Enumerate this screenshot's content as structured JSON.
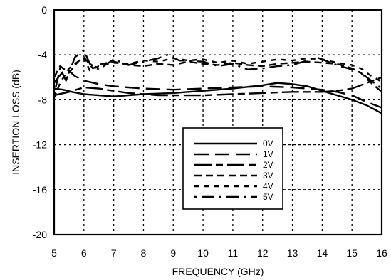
{
  "chart_data": {
    "type": "line",
    "title": "",
    "xlabel": "FREQUENCY (GHz)",
    "ylabel": "INSERTION LOSS (dB)",
    "xlim": [
      5,
      16
    ],
    "ylim": [
      -20,
      0
    ],
    "xticks": [
      "5",
      "6",
      "7",
      "8",
      "9",
      "10",
      "11",
      "12",
      "13",
      "14",
      "15",
      "16"
    ],
    "yticks": [
      "0",
      "-4",
      "-8",
      "-12",
      "-16",
      "-20"
    ],
    "grid": true,
    "legend_position": "lower-center",
    "series": [
      {
        "name": "0V",
        "dash": "solid",
        "x": [
          5,
          5.3,
          5.6,
          6,
          6.5,
          7,
          7.5,
          8,
          9,
          10,
          11,
          12,
          12.5,
          13,
          13.5,
          14,
          14.5,
          15,
          15.5,
          16
        ],
        "y": [
          -7.0,
          -7.1,
          -7.3,
          -7.5,
          -7.6,
          -7.7,
          -7.6,
          -7.5,
          -7.4,
          -7.2,
          -7.0,
          -6.7,
          -6.5,
          -6.6,
          -6.8,
          -7.2,
          -7.6,
          -8.0,
          -8.5,
          -9.2
        ]
      },
      {
        "name": "1V",
        "dash": "long-dash",
        "x": [
          5,
          5.2,
          5.4,
          5.7,
          6,
          6.5,
          7,
          7.5,
          8,
          9,
          10,
          11,
          12,
          13,
          14,
          14.5,
          15,
          15.5,
          16
        ],
        "y": [
          -6.5,
          -5.8,
          -5.2,
          -5.9,
          -6.3,
          -6.6,
          -6.8,
          -6.9,
          -7.0,
          -7.1,
          -7.0,
          -6.9,
          -6.8,
          -6.9,
          -7.1,
          -7.3,
          -7.6,
          -8.2,
          -8.7
        ]
      },
      {
        "name": "2V",
        "dash": "long-short",
        "x": [
          5,
          5.5,
          6,
          6.5,
          7,
          7.5,
          8,
          8.5,
          9,
          10,
          11,
          12,
          13,
          14,
          14.5,
          15,
          15.5,
          16
        ],
        "y": [
          -7.6,
          -7.3,
          -6.9,
          -7.0,
          -7.2,
          -7.4,
          -7.5,
          -7.6,
          -7.6,
          -7.6,
          -7.5,
          -7.4,
          -7.3,
          -7.3,
          -7.2,
          -7.0,
          -6.5,
          -6.0
        ]
      },
      {
        "name": "3V",
        "dash": "medium-dash",
        "x": [
          5,
          5.2,
          5.5,
          5.8,
          6,
          6.3,
          6.6,
          7,
          7.5,
          8,
          8.5,
          9,
          9.5,
          10,
          10.5,
          11,
          11.5,
          12,
          12.5,
          13,
          13.5,
          14,
          14.5,
          15,
          15.3,
          15.6,
          16
        ],
        "y": [
          -6.0,
          -5.0,
          -5.6,
          -4.6,
          -4.2,
          -5.2,
          -4.8,
          -4.6,
          -4.9,
          -5.0,
          -4.8,
          -4.9,
          -4.6,
          -4.8,
          -4.9,
          -4.7,
          -4.9,
          -5.0,
          -4.8,
          -4.7,
          -4.6,
          -4.7,
          -4.8,
          -5.2,
          -5.6,
          -6.4,
          -7.3
        ]
      },
      {
        "name": "4V",
        "dash": "dotted-dash",
        "x": [
          5,
          5.2,
          5.5,
          5.8,
          6,
          6.2,
          6.5,
          7,
          7.5,
          8,
          8.5,
          9,
          9.5,
          10,
          10.5,
          11,
          11.5,
          12,
          12.5,
          13,
          13.5,
          14,
          14.5,
          15,
          15.3,
          15.6,
          16
        ],
        "y": [
          -7.8,
          -6.5,
          -5.2,
          -4.6,
          -4.3,
          -5.4,
          -5.0,
          -4.7,
          -4.8,
          -4.5,
          -4.6,
          -4.3,
          -4.5,
          -4.4,
          -4.7,
          -4.5,
          -4.8,
          -4.6,
          -4.4,
          -4.5,
          -4.3,
          -4.4,
          -4.7,
          -4.9,
          -5.2,
          -5.8,
          -6.4
        ]
      },
      {
        "name": "5V",
        "dash": "dot-long-dash",
        "x": [
          5,
          5.2,
          5.4,
          5.7,
          6,
          6.2,
          6.5,
          7,
          7.5,
          8,
          8.5,
          8.8,
          9.2,
          10,
          10.5,
          11,
          11.5,
          12,
          12.5,
          13,
          13.5,
          13.8,
          14.2,
          14.6,
          15,
          15.3,
          15.6,
          16
        ],
        "y": [
          -7.5,
          -5.2,
          -6.3,
          -4.2,
          -3.6,
          -4.8,
          -5.3,
          -4.4,
          -4.9,
          -4.6,
          -4.3,
          -4.0,
          -4.5,
          -4.6,
          -5.0,
          -4.8,
          -5.3,
          -5.2,
          -5.0,
          -4.9,
          -4.5,
          -4.2,
          -4.6,
          -5.0,
          -5.3,
          -5.6,
          -6.2,
          -7.0
        ]
      }
    ]
  }
}
